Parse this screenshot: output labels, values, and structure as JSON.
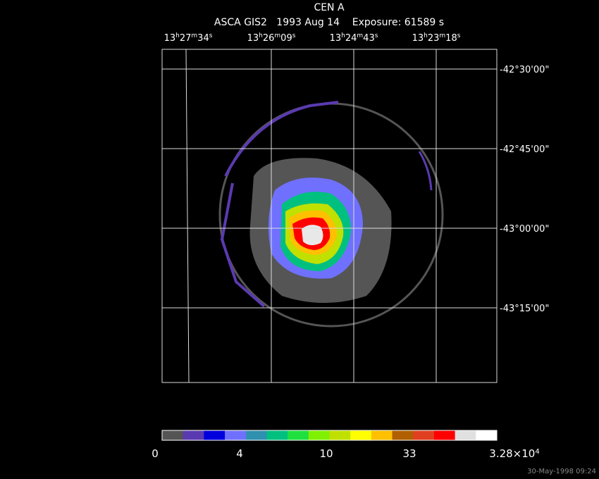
{
  "header": {
    "title": "CEN A",
    "subtitle": "ASCA GIS2   1993 Aug 14    Exposure: 61589 s"
  },
  "ra_labels": [
    [
      "13",
      "h",
      "27",
      "m",
      "34",
      "s"
    ],
    [
      "13",
      "h",
      "26",
      "m",
      "09",
      "s"
    ],
    [
      "13",
      "h",
      "24",
      "m",
      "43",
      "s"
    ],
    [
      "13",
      "h",
      "23",
      "m",
      "18",
      "s"
    ]
  ],
  "dec_labels": [
    "-42°30'00\"",
    "-42°45'00\"",
    "-43°00'00\"",
    "-43°15'00\""
  ],
  "colorbar": {
    "labels": [
      "0",
      "4",
      "10",
      "33"
    ],
    "max_label": {
      "mantissa": "3.28×10",
      "exponent": "4"
    }
  },
  "footer": {
    "timestamp": "30-May-1998 09:24"
  }
}
